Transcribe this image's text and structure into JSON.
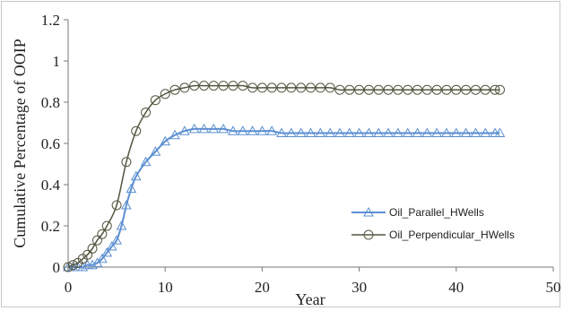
{
  "chart_data": {
    "type": "line",
    "title": "",
    "xlabel": "Year",
    "ylabel": "Cumulative Percentage of OOIP",
    "xlim": [
      0,
      50
    ],
    "ylim": [
      0,
      1.2
    ],
    "x_ticks": [
      "0",
      "10",
      "20",
      "30",
      "40",
      "50"
    ],
    "y_ticks": [
      "0",
      "0.2",
      "0.4",
      "0.6",
      "0.8",
      "1",
      "1.2"
    ],
    "grid": false,
    "legend_position": "lower-right",
    "series": [
      {
        "name": "Oil_Parallel_HWells",
        "color": "#5b8fd1",
        "marker": "triangle",
        "x": [
          0,
          0.5,
          1,
          1.5,
          2,
          2.5,
          3,
          3.5,
          4,
          4.5,
          5,
          5.5,
          6,
          6.5,
          7,
          8,
          9,
          10,
          11,
          12,
          13,
          14,
          15,
          16,
          17,
          18,
          19,
          20,
          21,
          22,
          23,
          24,
          25,
          26,
          27,
          28,
          29,
          30,
          31,
          32,
          33,
          34,
          35,
          36,
          37,
          38,
          39,
          40,
          41,
          42,
          43,
          44,
          44.5
        ],
        "y": [
          0,
          0,
          0,
          0,
          0.01,
          0.01,
          0.02,
          0.04,
          0.07,
          0.1,
          0.13,
          0.2,
          0.3,
          0.38,
          0.44,
          0.51,
          0.56,
          0.61,
          0.64,
          0.66,
          0.67,
          0.67,
          0.67,
          0.67,
          0.66,
          0.66,
          0.66,
          0.66,
          0.66,
          0.65,
          0.65,
          0.65,
          0.65,
          0.65,
          0.65,
          0.65,
          0.65,
          0.65,
          0.65,
          0.65,
          0.65,
          0.65,
          0.65,
          0.65,
          0.65,
          0.65,
          0.65,
          0.65,
          0.65,
          0.65,
          0.65,
          0.65,
          0.65
        ]
      },
      {
        "name": "Oil_Perpendicular_HWells",
        "color": "#555540",
        "marker": "circle",
        "x": [
          0,
          0.5,
          1,
          1.5,
          2,
          2.5,
          3,
          3.5,
          4,
          5,
          6,
          7,
          8,
          9,
          10,
          11,
          12,
          13,
          14,
          15,
          16,
          17,
          18,
          19,
          20,
          21,
          22,
          23,
          24,
          25,
          26,
          27,
          28,
          29,
          30,
          31,
          32,
          33,
          34,
          35,
          36,
          37,
          38,
          39,
          40,
          41,
          42,
          43,
          44,
          44.5
        ],
        "y": [
          0,
          0.01,
          0.02,
          0.04,
          0.06,
          0.09,
          0.13,
          0.16,
          0.2,
          0.3,
          0.51,
          0.66,
          0.75,
          0.81,
          0.84,
          0.86,
          0.87,
          0.88,
          0.88,
          0.88,
          0.88,
          0.88,
          0.88,
          0.87,
          0.87,
          0.87,
          0.87,
          0.87,
          0.87,
          0.87,
          0.87,
          0.87,
          0.86,
          0.86,
          0.86,
          0.86,
          0.86,
          0.86,
          0.86,
          0.86,
          0.86,
          0.86,
          0.86,
          0.86,
          0.86,
          0.86,
          0.86,
          0.86,
          0.86,
          0.86
        ]
      }
    ]
  }
}
